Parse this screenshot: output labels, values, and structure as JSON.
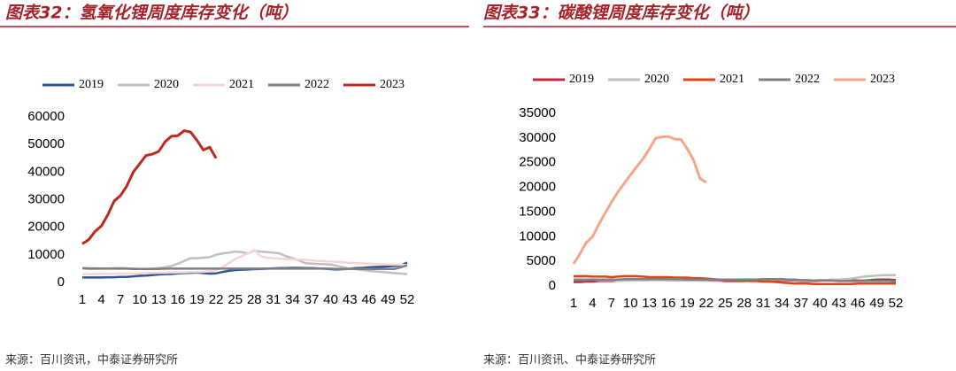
{
  "chart_data": [
    {
      "type": "line",
      "title": "图表32：氢氧化锂周度库存变化（吨）",
      "source": "来源：百川资讯，中泰证券研究所",
      "x": [
        1,
        2,
        3,
        4,
        5,
        6,
        7,
        8,
        9,
        10,
        11,
        12,
        13,
        14,
        15,
        16,
        17,
        18,
        19,
        20,
        21,
        22,
        23,
        24,
        25,
        26,
        27,
        28,
        29,
        30,
        31,
        32,
        33,
        34,
        35,
        36,
        37,
        38,
        39,
        40,
        41,
        42,
        43,
        44,
        45,
        46,
        47,
        48,
        49,
        50,
        51,
        52
      ],
      "xlim": [
        1,
        52
      ],
      "xticks": [
        1,
        4,
        7,
        10,
        13,
        16,
        19,
        22,
        25,
        28,
        31,
        34,
        37,
        40,
        43,
        46,
        49,
        52
      ],
      "ylim": [
        0,
        60000
      ],
      "yticks": [
        0,
        10000,
        20000,
        30000,
        40000,
        50000,
        60000
      ],
      "legend": "top",
      "grid": false,
      "series": [
        {
          "name": "2019",
          "color": "#2f5597",
          "values": [
            1800,
            1800,
            1800,
            1800,
            1900,
            1900,
            2000,
            2000,
            2200,
            2400,
            2500,
            2700,
            2900,
            3000,
            3100,
            3300,
            3400,
            3500,
            3600,
            3400,
            3200,
            3300,
            3800,
            4200,
            4500,
            4600,
            4700,
            4800,
            4900,
            5000,
            5100,
            5200,
            5200,
            5300,
            5300,
            5200,
            5200,
            5100,
            5000,
            4800,
            4700,
            4800,
            5000,
            5200,
            5300,
            5500,
            5600,
            5700,
            5800,
            6000,
            6200,
            7200
          ]
        },
        {
          "name": "2020",
          "color": "#bfbfbf",
          "values": [
            5000,
            4900,
            4900,
            5000,
            5100,
            5200,
            5200,
            5100,
            5000,
            4900,
            4900,
            5000,
            5200,
            5500,
            6000,
            6800,
            7800,
            8800,
            8800,
            9000,
            9200,
            10000,
            10500,
            10800,
            11200,
            11000,
            10500,
            11500,
            11200,
            11000,
            10800,
            10500,
            9500,
            8800,
            8000,
            7000,
            6800,
            6700,
            6600,
            6500,
            6000,
            5500,
            5000,
            4800,
            4500,
            4200,
            4000,
            3800,
            3600,
            3400,
            3200,
            3000
          ]
        },
        {
          "name": "2021",
          "color": "#f4d4d4",
          "values": [
            3000,
            3000,
            3000,
            3100,
            3100,
            3200,
            3200,
            3300,
            3300,
            3300,
            3400,
            3400,
            3500,
            3500,
            3600,
            3600,
            3700,
            3800,
            3800,
            3900,
            4000,
            4500,
            5500,
            7000,
            8500,
            9500,
            10500,
            11800,
            9500,
            9000,
            8800,
            8600,
            8500,
            8400,
            8300,
            8200,
            8000,
            7800,
            7700,
            7600,
            7500,
            7300,
            7100,
            7000,
            6900,
            6800,
            6700,
            6600,
            6500,
            6500,
            6400,
            6300
          ]
        },
        {
          "name": "2022",
          "color": "#7f7f7f",
          "values": [
            5200,
            5100,
            5100,
            5000,
            5000,
            5000,
            5000,
            5000,
            4900,
            4900,
            4900,
            4900,
            4900,
            5000,
            5000,
            5000,
            5000,
            5000,
            5000,
            5000,
            5000,
            5000,
            5000,
            5000,
            5000,
            5000,
            5000,
            5000,
            5000,
            5000,
            5000,
            5000,
            5000,
            5000,
            5000,
            5000,
            5000,
            5000,
            5000,
            5000,
            4900,
            4900,
            4900,
            4900,
            4900,
            4900,
            4900,
            4900,
            4900,
            4900,
            5500,
            6200
          ]
        },
        {
          "name": "2023",
          "color": "#c0281e",
          "values": [
            14000,
            15500,
            18500,
            20500,
            24500,
            29500,
            31500,
            35000,
            40000,
            43000,
            46000,
            46500,
            47500,
            51000,
            53000,
            53200,
            55000,
            54500,
            51500,
            48000,
            49000,
            45000,
            null,
            null,
            null,
            null,
            null,
            null,
            null,
            null,
            null,
            null,
            null,
            null,
            null,
            null,
            null,
            null,
            null,
            null,
            null,
            null,
            null,
            null,
            null,
            null,
            null,
            null,
            null,
            null,
            null,
            null
          ]
        }
      ]
    },
    {
      "type": "line",
      "title": "图表33：碳酸锂周度库存变化（吨）",
      "source": "来源：百川资讯、中泰证券研究所",
      "x": [
        1,
        2,
        3,
        4,
        5,
        6,
        7,
        8,
        9,
        10,
        11,
        12,
        13,
        14,
        15,
        16,
        17,
        18,
        19,
        20,
        21,
        22,
        23,
        24,
        25,
        26,
        27,
        28,
        29,
        30,
        31,
        32,
        33,
        34,
        35,
        36,
        37,
        38,
        39,
        40,
        41,
        42,
        43,
        44,
        45,
        46,
        47,
        48,
        49,
        50,
        51,
        52
      ],
      "xlim": [
        1,
        52
      ],
      "xticks": [
        1,
        4,
        7,
        10,
        13,
        16,
        19,
        22,
        25,
        28,
        31,
        34,
        37,
        40,
        43,
        46,
        49,
        52
      ],
      "ylim": [
        0,
        35000
      ],
      "yticks": [
        0,
        5000,
        10000,
        15000,
        20000,
        25000,
        30000,
        35000
      ],
      "legend": "top",
      "grid": false,
      "series": [
        {
          "name": "2019",
          "color": "#c0283c",
          "values": [
            800,
            800,
            900,
            900,
            1000,
            1000,
            1000,
            1100,
            1100,
            1200,
            1200,
            1200,
            1200,
            1300,
            1300,
            1300,
            1300,
            1200,
            1200,
            1200,
            1100,
            1100,
            1100,
            1100,
            1000,
            1000,
            1000,
            1000,
            1100,
            1100,
            1100,
            1200,
            1200,
            1200,
            1100,
            1100,
            1000,
            1000,
            1000,
            1100,
            1200,
            1300,
            1300,
            1200,
            1200,
            1100,
            1100,
            1200,
            1300,
            1300,
            1300,
            1200
          ]
        },
        {
          "name": "2020",
          "color": "#bfbfbf",
          "values": [
            1500,
            1500,
            1400,
            1300,
            1200,
            1200,
            1200,
            1100,
            1100,
            1100,
            1200,
            1200,
            1200,
            1200,
            1200,
            1100,
            1100,
            1100,
            1100,
            1100,
            1100,
            1100,
            1200,
            1200,
            1200,
            1200,
            1300,
            1300,
            1300,
            1300,
            1300,
            1300,
            1300,
            1300,
            1200,
            1200,
            1100,
            1100,
            1100,
            1200,
            1200,
            1300,
            1300,
            1400,
            1500,
            1700,
            1900,
            2000,
            2100,
            2200,
            2200,
            2200
          ]
        },
        {
          "name": "2021",
          "color": "#e0401a",
          "values": [
            2000,
            2000,
            2000,
            1900,
            1900,
            1900,
            1800,
            1900,
            2000,
            2000,
            2000,
            1900,
            1800,
            1800,
            1800,
            1800,
            1700,
            1700,
            1700,
            1600,
            1600,
            1500,
            1400,
            1300,
            1200,
            1200,
            1100,
            1100,
            1000,
            1000,
            900,
            900,
            800,
            700,
            600,
            500,
            500,
            500,
            400,
            400,
            400,
            400,
            400,
            400,
            400,
            500,
            500,
            500,
            500,
            500,
            500,
            500
          ]
        },
        {
          "name": "2022",
          "color": "#7f7f7f",
          "values": [
            1200,
            1200,
            1200,
            1300,
            1300,
            1300,
            1300,
            1300,
            1400,
            1400,
            1400,
            1400,
            1400,
            1400,
            1400,
            1400,
            1400,
            1400,
            1300,
            1300,
            1300,
            1300,
            1300,
            1300,
            1300,
            1300,
            1300,
            1300,
            1300,
            1300,
            1400,
            1400,
            1400,
            1400,
            1300,
            1300,
            1200,
            1200,
            1100,
            1100,
            1100,
            1100,
            1000,
            1000,
            1000,
            1000,
            1000,
            1000,
            1000,
            1000,
            1000,
            900
          ]
        },
        {
          "name": "2023",
          "color": "#f4a58a",
          "values": [
            4500,
            6500,
            8800,
            10000,
            12500,
            14800,
            17000,
            19000,
            20800,
            22500,
            24200,
            25800,
            27800,
            30000,
            30200,
            30300,
            29800,
            29700,
            27800,
            25500,
            21800,
            21000,
            null,
            null,
            null,
            null,
            null,
            null,
            null,
            null,
            null,
            null,
            null,
            null,
            null,
            null,
            null,
            null,
            null,
            null,
            null,
            null,
            null,
            null,
            null,
            null,
            null,
            null,
            null,
            null,
            null,
            null
          ]
        }
      ]
    }
  ]
}
